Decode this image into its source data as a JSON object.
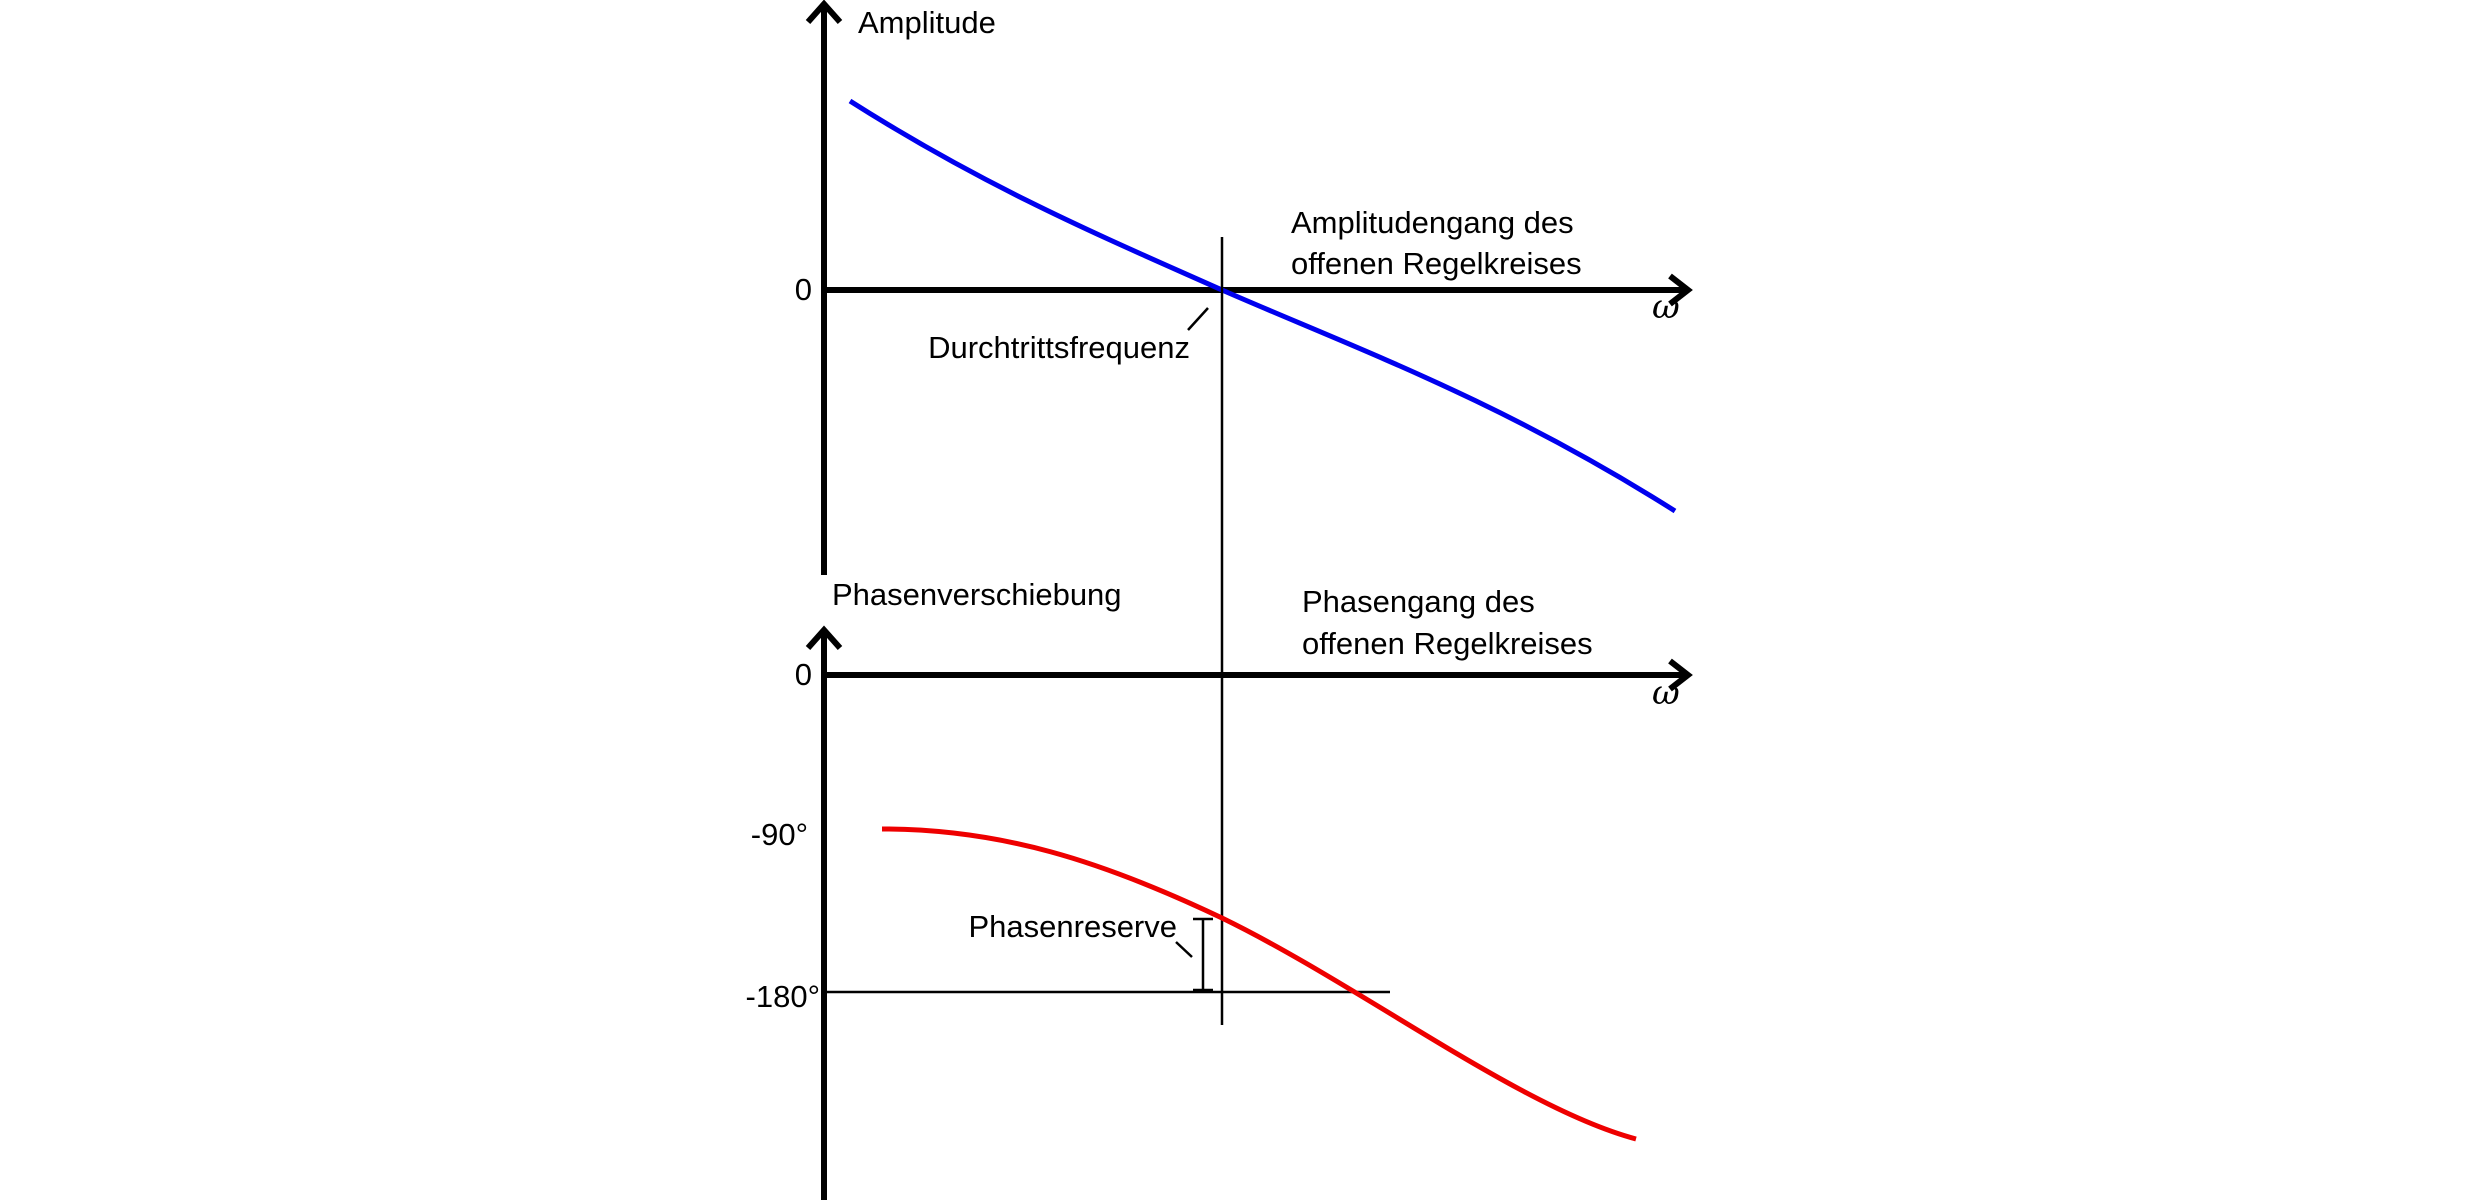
{
  "upper_plot": {
    "y_axis_label": "Amplitude",
    "zero_tick": "0",
    "x_axis_symbol": "ω",
    "curve_label_line1": "Amplitudengang des",
    "curve_label_line2": "offenen Regelkreises",
    "crossover_label": "Durchtrittsfrequenz"
  },
  "lower_plot": {
    "y_axis_label": "Phasenverschiebung",
    "zero_tick": "0",
    "x_axis_symbol": "ω",
    "tick_minus90": "-90°",
    "tick_minus180": "-180°",
    "curve_label_line1": "Phasengang des",
    "curve_label_line2": "offenen Regelkreises",
    "margin_label": "Phasenreserve"
  },
  "colors": {
    "amplitude_curve": "#0000ee",
    "phase_curve": "#ee0000",
    "axes": "#000000"
  }
}
